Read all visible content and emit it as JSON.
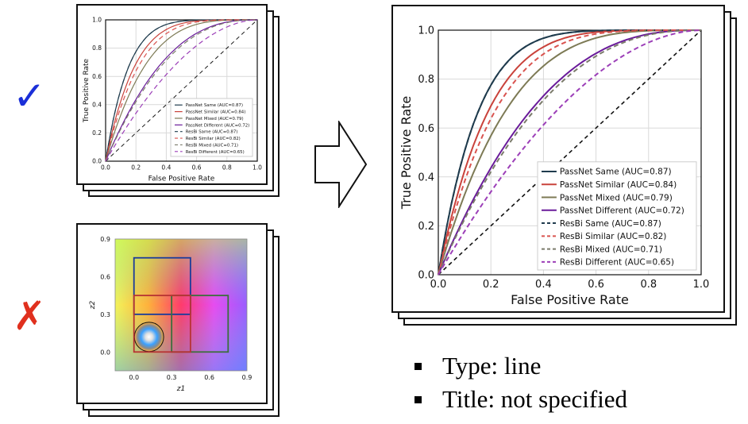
{
  "marks": {
    "check": "✓",
    "cross": "✗",
    "check_color": "#1a2fd8",
    "cross_color": "#e0301e"
  },
  "roc_chart": {
    "chart_data": {
      "type": "line",
      "xlabel": "False Positive Rate",
      "ylabel": "True Positive Rate",
      "xlim": [
        0,
        1
      ],
      "ylim": [
        0,
        1
      ],
      "x_ticks": [
        "0.0",
        "0.2",
        "0.4",
        "0.6",
        "0.8",
        "1.0"
      ],
      "y_ticks": [
        "0.0",
        "0.2",
        "0.4",
        "0.6",
        "0.8",
        "1.0"
      ],
      "grid": true,
      "legend_position": "bottom-right",
      "series": [
        {
          "name": "PassNet Same (AUC=0.87)",
          "auc": 0.87,
          "color": "#1f3b4d",
          "dashed": false
        },
        {
          "name": "PassNet Similar (AUC=0.84)",
          "auc": 0.84,
          "color": "#c9423b",
          "dashed": false
        },
        {
          "name": "PassNet Mixed (AUC=0.79)",
          "auc": 0.79,
          "color": "#7d7a55",
          "dashed": false
        },
        {
          "name": "PassNet Different (AUC=0.72)",
          "auc": 0.72,
          "color": "#6a1b9a",
          "dashed": false
        },
        {
          "name": "ResBi Same (AUC=0.87)",
          "auc": 0.87,
          "color": "#1f3b4d",
          "dashed": true
        },
        {
          "name": "ResBi Similar (AUC=0.82)",
          "auc": 0.82,
          "color": "#d9534f",
          "dashed": true
        },
        {
          "name": "ResBi Mixed (AUC=0.71)",
          "auc": 0.71,
          "color": "#7b7b6b",
          "dashed": true
        },
        {
          "name": "ResBi Different (AUC=0.65)",
          "auc": 0.65,
          "color": "#9c3fb8",
          "dashed": true
        }
      ],
      "diagonal": {
        "color": "#111111",
        "dashed": true
      }
    }
  },
  "map_chart": {
    "xlabel": "z1",
    "ylabel": "z2",
    "x_ticks": [
      "0.0",
      "0.3",
      "0.6",
      "0.9"
    ],
    "y_ticks": [
      "0.0",
      "0.3",
      "0.6",
      "0.9"
    ],
    "box_colors": {
      "top": "#1b3b9a",
      "left": "#b73333",
      "right": "#3d6e3d",
      "circle": "#111111"
    }
  },
  "bullets": [
    "Type: line",
    "Title: not specified"
  ]
}
